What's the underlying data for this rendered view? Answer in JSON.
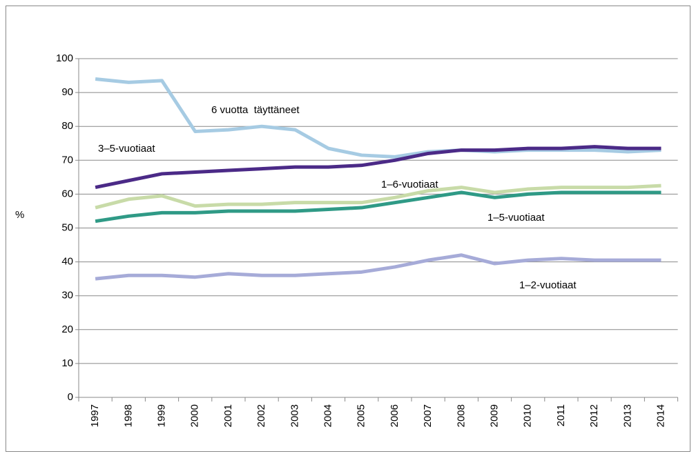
{
  "chart_data": {
    "type": "line",
    "y_label": "%",
    "categories": [
      "1997",
      "1998",
      "1999",
      "2000",
      "2001",
      "2002",
      "2003",
      "2004",
      "2005",
      "2006",
      "2007",
      "2008",
      "2009",
      "2010",
      "2011",
      "2012",
      "2013",
      "2014"
    ],
    "series": [
      {
        "name": "6 vuotta  täyttäneet",
        "color": "#a6cbe3",
        "values": [
          94,
          93,
          93.5,
          78.5,
          79,
          80,
          79,
          73.5,
          71.5,
          71,
          72.5,
          73,
          72.5,
          73,
          73,
          73,
          72.5,
          73
        ]
      },
      {
        "name": "3–5-vuotiaat",
        "color": "#4b2a87",
        "values": [
          62,
          64,
          66,
          66.5,
          67,
          67.5,
          68,
          68,
          68.5,
          70,
          72,
          73,
          73,
          73.5,
          73.5,
          74,
          73.5,
          73.5
        ]
      },
      {
        "name": "1–6-vuotiaat",
        "color": "#c8dba8",
        "values": [
          56,
          58.5,
          59.5,
          56.5,
          57,
          57,
          57.5,
          57.5,
          57.5,
          59,
          61,
          62,
          60.5,
          61.5,
          62,
          62,
          62,
          62.5
        ]
      },
      {
        "name": "1–5-vuotiaat",
        "color": "#2f9a86",
        "values": [
          52,
          53.5,
          54.5,
          54.5,
          55,
          55,
          55,
          55.5,
          56,
          57.5,
          59,
          60.5,
          59,
          60,
          60.5,
          60.5,
          60.5,
          60.5
        ]
      },
      {
        "name": "1–2-vuotiaat",
        "color": "#a6abd8",
        "values": [
          35,
          36,
          36,
          35.5,
          36.5,
          36,
          36,
          36.5,
          37,
          38.5,
          40.5,
          42,
          39.5,
          40.5,
          41,
          40.5,
          40.5,
          40.5
        ]
      }
    ],
    "ylim": [
      0,
      100
    ],
    "yticks": [
      0,
      10,
      20,
      30,
      40,
      50,
      60,
      70,
      80,
      90,
      100
    ],
    "grid": true
  }
}
